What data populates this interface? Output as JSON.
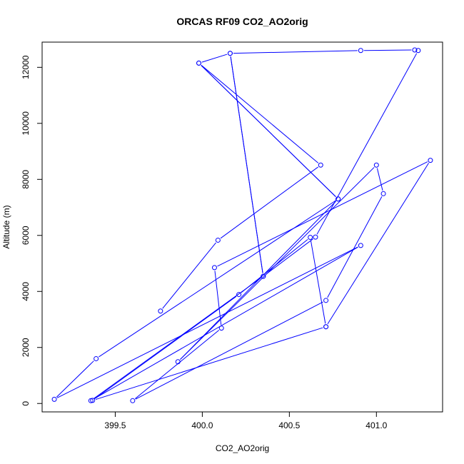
{
  "chart_data": {
    "type": "line",
    "title": "ORCAS RF09 CO2_AO2orig",
    "xlabel": "CO2_AO2orig",
    "ylabel": "Altitude (m)",
    "xlim": [
      399.08,
      401.38
    ],
    "ylim": [
      -300,
      12900
    ],
    "xticks": [
      399.5,
      400.0,
      400.5,
      401.0
    ],
    "xtick_labels": [
      "399.5",
      "400.0",
      "400.5",
      "401.0"
    ],
    "yticks": [
      0,
      2000,
      4000,
      6000,
      8000,
      10000,
      12000
    ],
    "ytick_labels": [
      "0",
      "2000",
      "4000",
      "6000",
      "8000",
      "10000",
      "12000"
    ],
    "grid": false,
    "color": "#0000ff",
    "series": [
      {
        "points": [
          {
            "x": 399.76,
            "y": 3300
          },
          {
            "x": 400.09,
            "y": 5830
          },
          {
            "x": 400.68,
            "y": 8510
          },
          {
            "x": 399.98,
            "y": 12150
          },
          {
            "x": 400.78,
            "y": 7300
          },
          {
            "x": 399.98,
            "y": 12150
          },
          {
            "x": 400.16,
            "y": 12500
          },
          {
            "x": 400.91,
            "y": 12600
          },
          {
            "x": 401.22,
            "y": 12620
          },
          {
            "x": 401.24,
            "y": 12600
          },
          {
            "x": 400.65,
            "y": 5940
          },
          {
            "x": 400.35,
            "y": 4540
          },
          {
            "x": 400.16,
            "y": 12500
          },
          {
            "x": 400.35,
            "y": 4540
          },
          {
            "x": 399.36,
            "y": 100
          },
          {
            "x": 400.91,
            "y": 5640
          },
          {
            "x": 399.15,
            "y": 150
          },
          {
            "x": 399.39,
            "y": 1600
          },
          {
            "x": 400.78,
            "y": 7300
          },
          {
            "x": 399.86,
            "y": 1490
          },
          {
            "x": 401.0,
            "y": 8510
          },
          {
            "x": 401.04,
            "y": 7490
          },
          {
            "x": 400.71,
            "y": 3680
          },
          {
            "x": 399.6,
            "y": 100
          },
          {
            "x": 400.11,
            "y": 2690
          },
          {
            "x": 400.07,
            "y": 4850
          },
          {
            "x": 401.31,
            "y": 8680
          },
          {
            "x": 400.71,
            "y": 2740
          },
          {
            "x": 399.37,
            "y": 110
          },
          {
            "x": 400.21,
            "y": 3890
          },
          {
            "x": 400.62,
            "y": 5930
          },
          {
            "x": 400.71,
            "y": 2740
          }
        ]
      }
    ]
  }
}
